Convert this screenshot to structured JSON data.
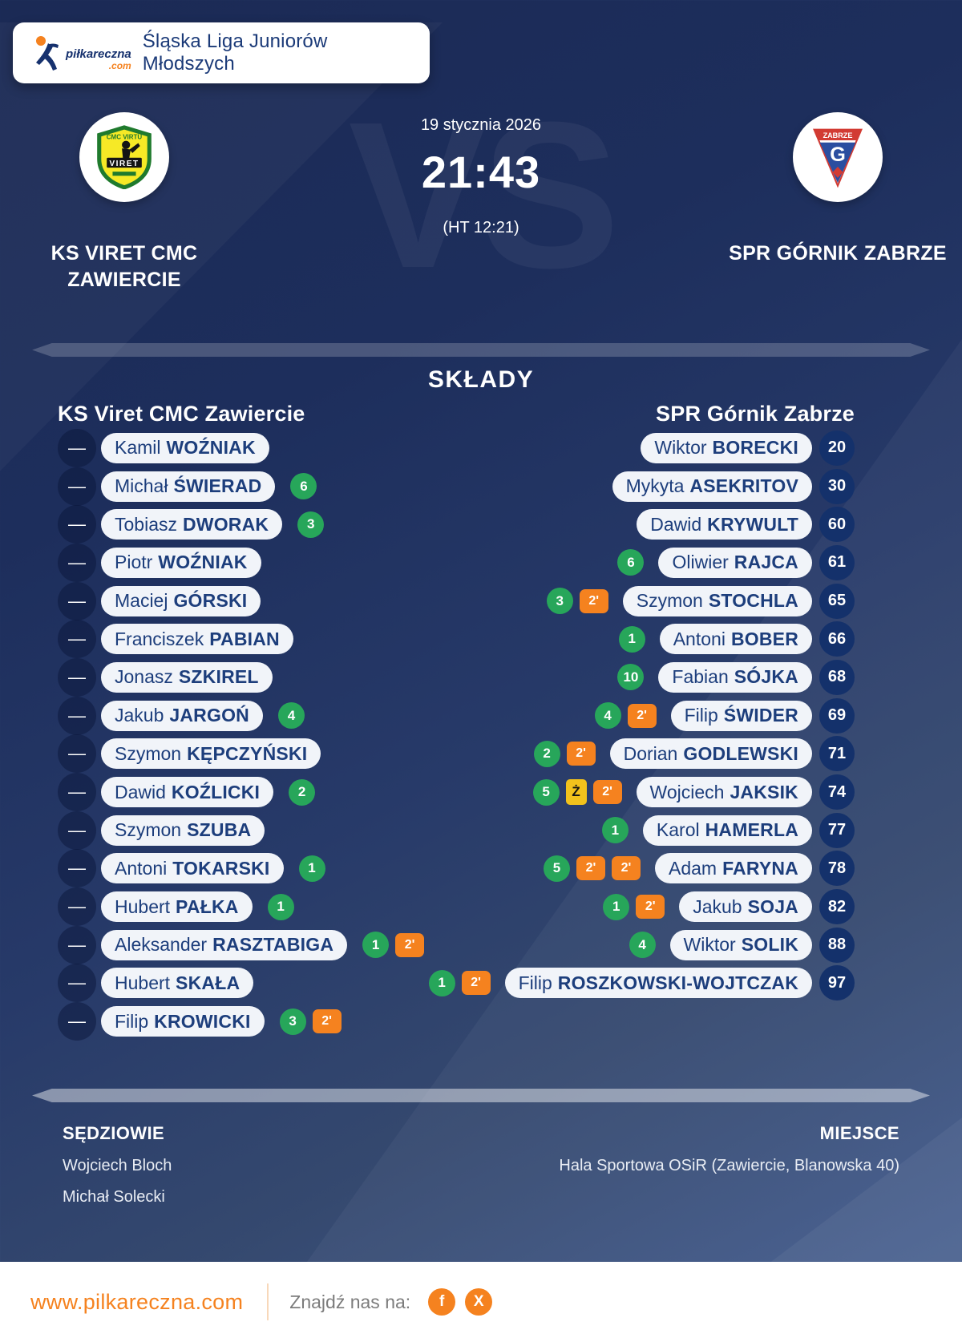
{
  "header": {
    "brand_name": "piłkareczna",
    "brand_tld": ".com",
    "league_title": "Śląska Liga Juniorów Młodszych"
  },
  "match": {
    "date": "19 stycznia 2026",
    "score": "21:43",
    "halftime": "(HT 12:21)",
    "vs_watermark": "VS",
    "home_team": {
      "name": "KS VIRET CMC ZAWIERCIE",
      "crest_top_text": "CMC VIRTU",
      "crest_banner": "VIRET"
    },
    "away_team": {
      "name": "SPR GÓRNIK ZABRZE",
      "crest_band": "ZABRZE",
      "crest_letter": "G"
    }
  },
  "lineups": {
    "title": "SKŁADY",
    "home_header": "KS Viret CMC Zawiercie",
    "away_header": "SPR Górnik Zabrze",
    "number_placeholder": "—",
    "yellow_card_label": "Ż",
    "home_players": [
      {
        "first": "Kamil",
        "last": "WOŹNIAK",
        "goals": null,
        "pens": [],
        "yellow": false
      },
      {
        "first": "Michał",
        "last": "ŚWIERAD",
        "goals": 6,
        "pens": [],
        "yellow": false
      },
      {
        "first": "Tobiasz",
        "last": "DWORAK",
        "goals": 3,
        "pens": [],
        "yellow": false
      },
      {
        "first": "Piotr",
        "last": "WOŹNIAK",
        "goals": null,
        "pens": [],
        "yellow": false
      },
      {
        "first": "Maciej",
        "last": "GÓRSKI",
        "goals": null,
        "pens": [],
        "yellow": false
      },
      {
        "first": "Franciszek",
        "last": "PABIAN",
        "goals": null,
        "pens": [],
        "yellow": false
      },
      {
        "first": "Jonasz",
        "last": "SZKIREL",
        "goals": null,
        "pens": [],
        "yellow": false
      },
      {
        "first": "Jakub",
        "last": "JARGOŃ",
        "goals": 4,
        "pens": [],
        "yellow": false
      },
      {
        "first": "Szymon",
        "last": "KĘPCZYŃSKI",
        "goals": null,
        "pens": [],
        "yellow": false
      },
      {
        "first": "Dawid",
        "last": "KOŹLICKI",
        "goals": 2,
        "pens": [],
        "yellow": false
      },
      {
        "first": "Szymon",
        "last": "SZUBA",
        "goals": null,
        "pens": [],
        "yellow": false
      },
      {
        "first": "Antoni",
        "last": "TOKARSKI",
        "goals": 1,
        "pens": [],
        "yellow": false
      },
      {
        "first": "Hubert",
        "last": "PAŁKA",
        "goals": 1,
        "pens": [],
        "yellow": false
      },
      {
        "first": "Aleksander",
        "last": "RASZTABIGA",
        "goals": 1,
        "pens": [
          "2'"
        ],
        "yellow": false
      },
      {
        "first": "Hubert",
        "last": "SKAŁA",
        "goals": null,
        "pens": [],
        "yellow": false
      },
      {
        "first": "Filip",
        "last": "KROWICKI",
        "goals": 3,
        "pens": [
          "2'"
        ],
        "yellow": false
      }
    ],
    "away_players": [
      {
        "number": 20,
        "first": "Wiktor",
        "last": "BORECKI",
        "goals": null,
        "pens": [],
        "yellow": false
      },
      {
        "number": 30,
        "first": "Mykyta",
        "last": "ASEKRITOV",
        "goals": null,
        "pens": [],
        "yellow": false
      },
      {
        "number": 60,
        "first": "Dawid",
        "last": "KRYWULT",
        "goals": null,
        "pens": [],
        "yellow": false
      },
      {
        "number": 61,
        "first": "Oliwier",
        "last": "RAJCA",
        "goals": 6,
        "pens": [],
        "yellow": false
      },
      {
        "number": 65,
        "first": "Szymon",
        "last": "STOCHLA",
        "goals": 3,
        "pens": [
          "2'"
        ],
        "yellow": false
      },
      {
        "number": 66,
        "first": "Antoni",
        "last": "BOBER",
        "goals": 1,
        "pens": [],
        "yellow": false
      },
      {
        "number": 68,
        "first": "Fabian",
        "last": "SÓJKA",
        "goals": 10,
        "pens": [],
        "yellow": false
      },
      {
        "number": 69,
        "first": "Filip",
        "last": "ŚWIDER",
        "goals": 4,
        "pens": [
          "2'"
        ],
        "yellow": false
      },
      {
        "number": 71,
        "first": "Dorian",
        "last": "GODLEWSKI",
        "goals": 2,
        "pens": [
          "2'"
        ],
        "yellow": false
      },
      {
        "number": 74,
        "first": "Wojciech",
        "last": "JAKSIK",
        "goals": 5,
        "pens": [
          "2'"
        ],
        "yellow": true
      },
      {
        "number": 77,
        "first": "Karol",
        "last": "HAMERLA",
        "goals": 1,
        "pens": [],
        "yellow": false
      },
      {
        "number": 78,
        "first": "Adam",
        "last": "FARYNA",
        "goals": 5,
        "pens": [
          "2'",
          "2'"
        ],
        "yellow": false
      },
      {
        "number": 82,
        "first": "Jakub",
        "last": "SOJA",
        "goals": 1,
        "pens": [
          "2'"
        ],
        "yellow": false
      },
      {
        "number": 88,
        "first": "Wiktor",
        "last": "SOLIK",
        "goals": 4,
        "pens": [],
        "yellow": false
      },
      {
        "number": 97,
        "first": "Filip",
        "last": "ROSZKOWSKI-WOJTCZAK",
        "goals": 1,
        "pens": [
          "2'"
        ],
        "yellow": false
      }
    ]
  },
  "footer": {
    "referees_label": "SĘDZIOWIE",
    "referees": [
      "Wojciech Bloch",
      "Michał Solecki"
    ],
    "venue_label": "MIEJSCE",
    "venue": "Hala Sportowa OSiR (Zawiercie, Blanowska 40)"
  },
  "bottom_bar": {
    "website": "www.pilkareczna.com",
    "find_us_label": "Znajdź nas na:",
    "socials": [
      "f",
      "X"
    ]
  },
  "colors": {
    "accent_orange": "#F5821F",
    "goal_green": "#27A65A",
    "card_yellow": "#F2C21C",
    "navy_text": "#1D3E7C",
    "background_navy": "#1B2A55"
  }
}
